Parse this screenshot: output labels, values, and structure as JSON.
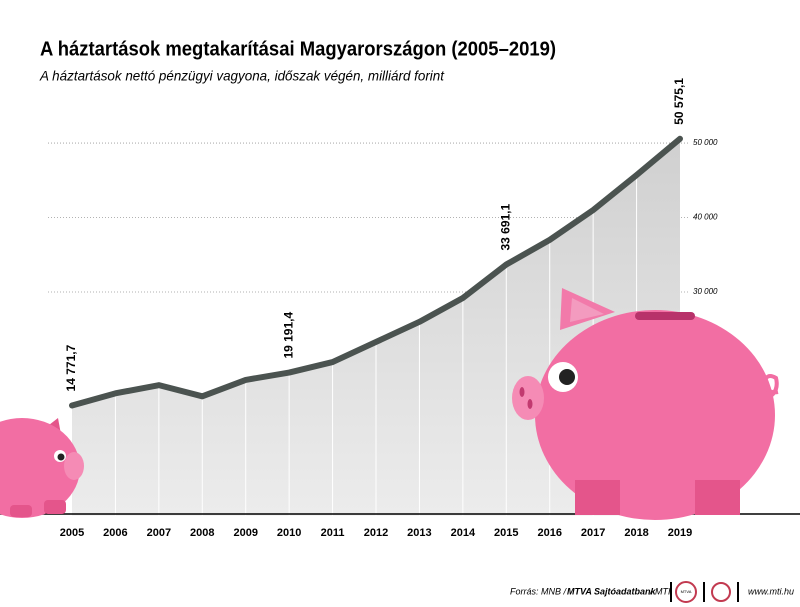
{
  "chart_data": {
    "type": "line",
    "title": "A háztartások megtakarításai Magyarországon (2005–2019)",
    "subtitle": "A háztartások nettó pénzügyi vagyona, időszak végén, milliárd forint",
    "categories": [
      "2005",
      "2006",
      "2007",
      "2008",
      "2009",
      "2010",
      "2011",
      "2012",
      "2013",
      "2014",
      "2015",
      "2016",
      "2017",
      "2018",
      "2019"
    ],
    "values": [
      14771.7,
      16400,
      17500,
      16000,
      18200,
      19191.4,
      20600,
      23300,
      26000,
      29200,
      33691.1,
      37000,
      41000,
      45700,
      50575.1
    ],
    "value_labels": [
      "14 771,7",
      null,
      null,
      null,
      null,
      "19 191,4",
      null,
      null,
      null,
      null,
      "33 691,1",
      null,
      null,
      null,
      "50 575,1"
    ],
    "color": "#4b5350",
    "ylim": [
      0,
      55000
    ],
    "yticks": [
      {
        "value": 30000,
        "label": "30 000"
      },
      {
        "value": 40000,
        "label": "40 000"
      },
      {
        "value": 50000,
        "label": "50 000"
      }
    ],
    "grid": true
  },
  "footer": {
    "source": [
      "Forrás: MNB /",
      "MTVA Sajtóadatbank",
      "/ MTI"
    ],
    "logo": "MTVA",
    "url": "www.mti.hu"
  }
}
